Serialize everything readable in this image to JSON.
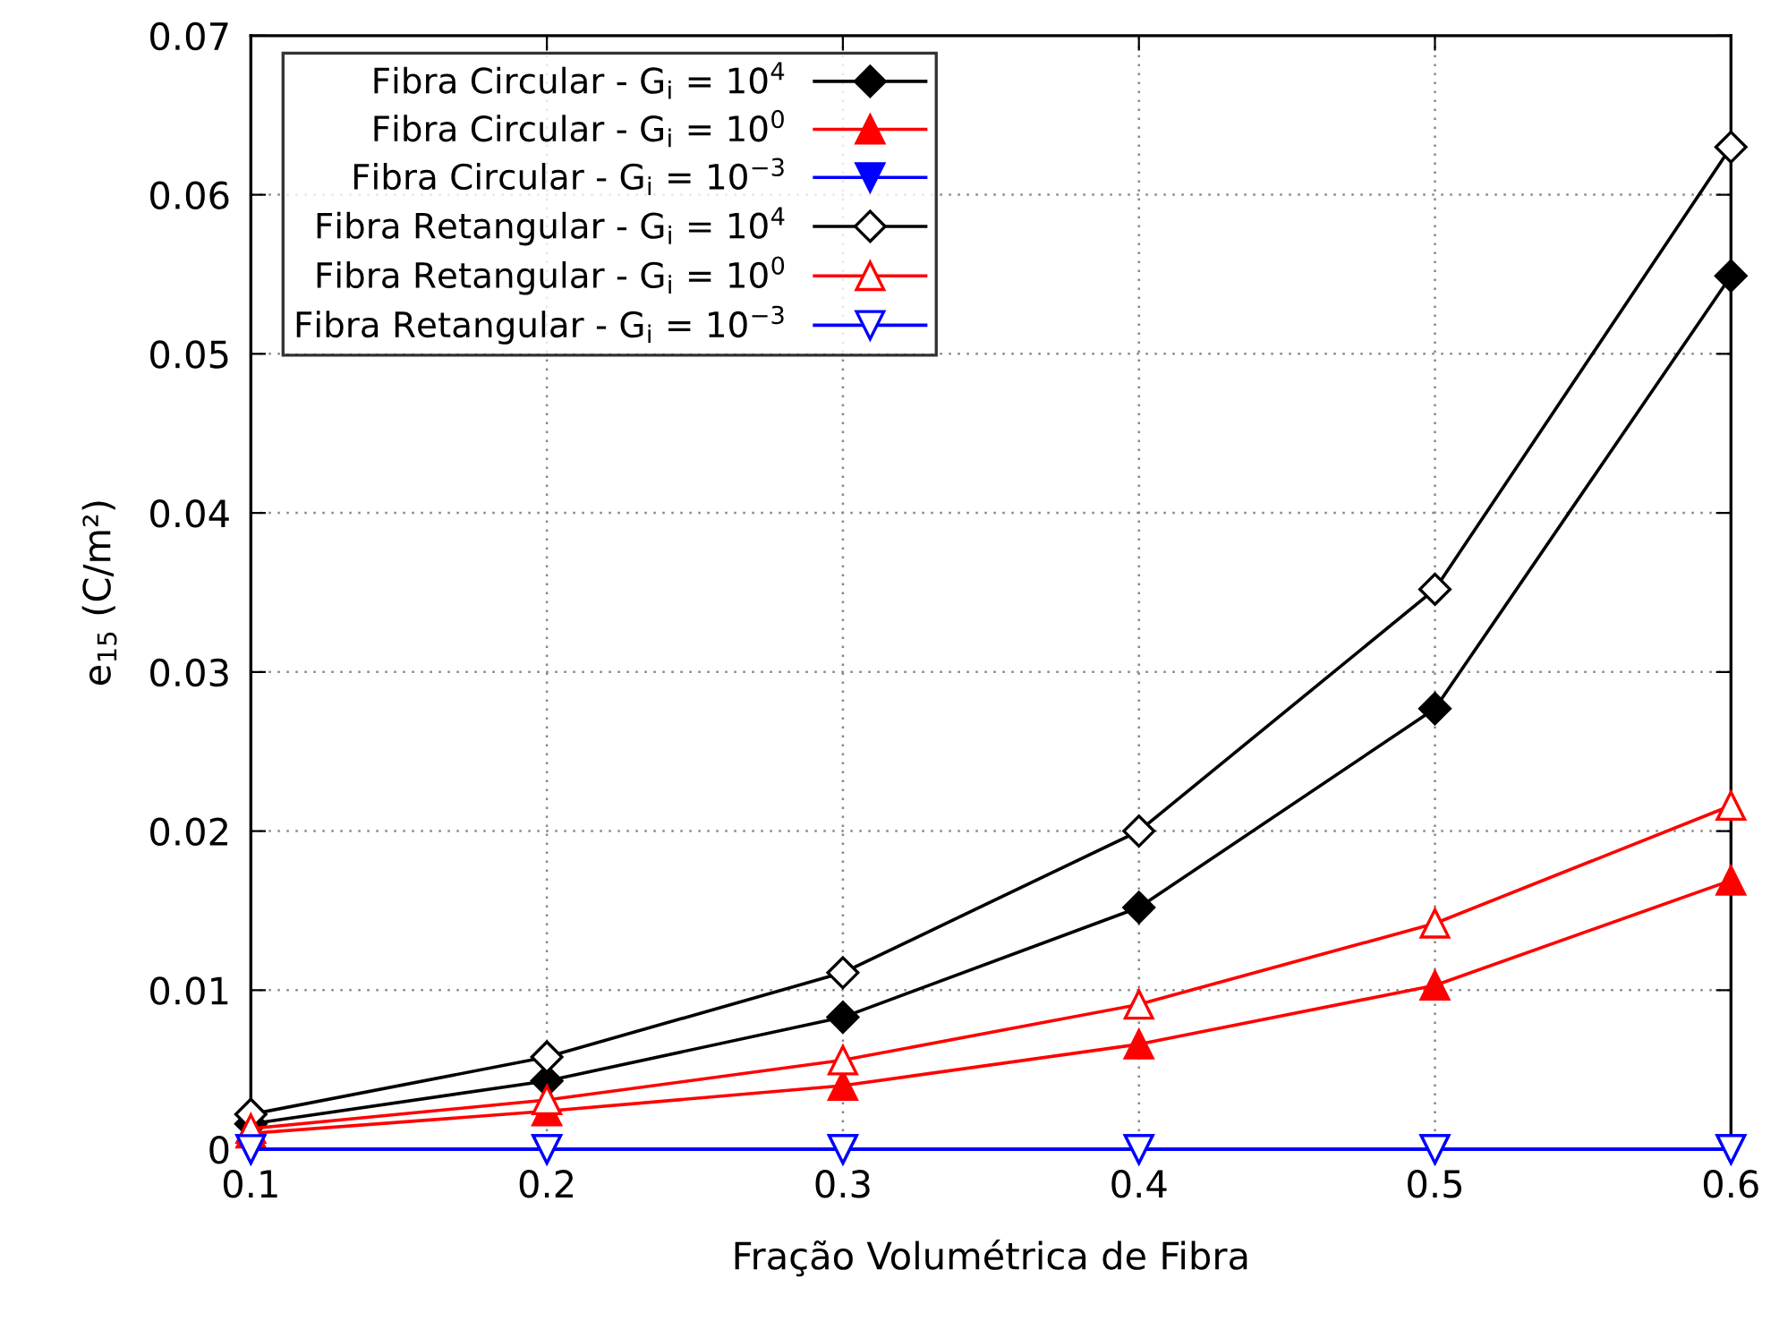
{
  "chart_data": {
    "type": "line",
    "xlabel": "Fração Volumétrica de Fibra",
    "ylabel": "e$_{15}$ (C/m²)",
    "x": [
      0.1,
      0.2,
      0.3,
      0.4,
      0.5,
      0.6
    ],
    "series": [
      {
        "name": "Fibra Circular - G$_{i}$ = 10$^{4}$",
        "color": "#000000",
        "marker": "diamond",
        "values": [
          0.0016,
          0.0043,
          0.0083,
          0.0152,
          0.0277,
          0.0549
        ]
      },
      {
        "name": "Fibra Circular - G$_{i}$ = 10$^{0}$",
        "color": "#ff0000",
        "marker": "triangle",
        "values": [
          0.001,
          0.0024,
          0.004,
          0.0066,
          0.0103,
          0.0169
        ]
      },
      {
        "name": "Fibra Circular - G$_{i}$ = 10$^{−3}$",
        "color": "#0000ff",
        "marker": "triangle_down",
        "values": [
          0,
          0,
          0,
          0,
          0,
          0
        ]
      },
      {
        "name": "Fibra Retangular - G$_{i}$ = 10$^{4}$",
        "color": "#000000",
        "marker": "diamond_open",
        "values": [
          0.0022,
          0.0058,
          0.0111,
          0.02,
          0.0352,
          0.063
        ]
      },
      {
        "name": "Fibra Retangular - G$_{i}$ = 10$^{0}$",
        "color": "#ff0000",
        "marker": "triangle_open",
        "values": [
          0.0013,
          0.0031,
          0.0056,
          0.0091,
          0.0142,
          0.0216
        ]
      },
      {
        "name": "Fibra Retangular - G$_{i}$ = 10$^{−3}$",
        "color": "#0000ff",
        "marker": "triangle_down_open",
        "values": [
          0,
          0,
          0,
          0,
          0,
          0
        ]
      }
    ],
    "xlim": [
      0.1,
      0.6
    ],
    "ylim": [
      0,
      0.07
    ],
    "xticks": [
      0.1,
      0.2,
      0.3,
      0.4,
      0.5,
      0.6
    ],
    "yticks": [
      0,
      0.01,
      0.02,
      0.03,
      0.04,
      0.05,
      0.06,
      0.07
    ],
    "grid": true,
    "legend": "top left",
    "line_style": "solid"
  }
}
